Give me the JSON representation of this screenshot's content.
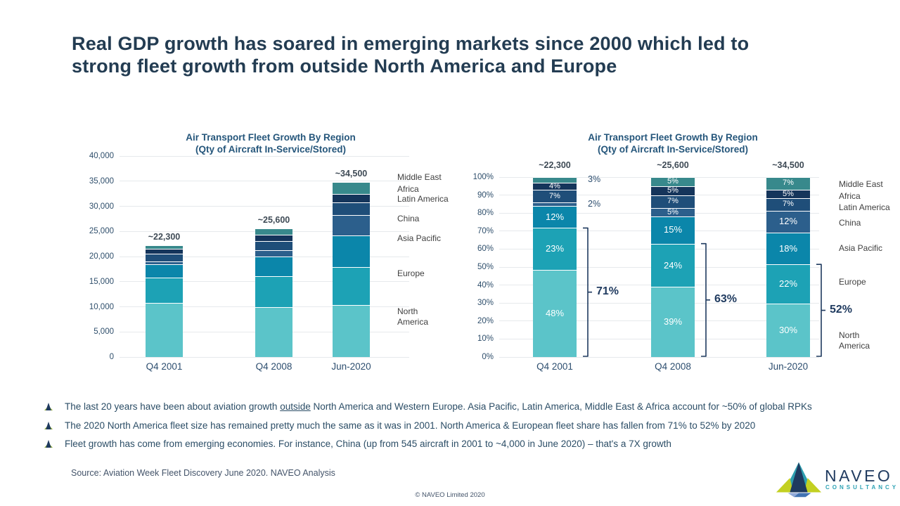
{
  "title_lines": [
    "Real GDP growth has soared in emerging markets since 2000 which led to",
    "strong fleet growth from outside North America and Europe"
  ],
  "colors": {
    "north_america": "#5BC4C9",
    "europe": "#1DA2B5",
    "asia_pacific": "#0B86AA",
    "china": "#2C5F8C",
    "latin_america": "#1F4E79",
    "africa": "#15355B",
    "middle_east": "#38898C",
    "brace": "#1F3A5F",
    "title_navy": "#233C52"
  },
  "chart_data": [
    {
      "type": "bar",
      "stacked": true,
      "title_lines": [
        "Air Transport Fleet Growth By Region",
        "(Qty of Aircraft In-Service/Stored)"
      ],
      "categories": [
        "Q4 2001",
        "Q4 2008",
        "Jun-2020"
      ],
      "totals_labels": [
        "~22,300",
        "~25,600",
        "~34,500"
      ],
      "totals": [
        22300,
        25600,
        34500
      ],
      "ylim": [
        0,
        40000
      ],
      "yticks": [
        "0",
        "5,000",
        "10,000",
        "15,000",
        "20,000",
        "25,000",
        "30,000",
        "35,000",
        "40,000"
      ],
      "grid": true,
      "legend_position": "right",
      "series": [
        {
          "name": "North America",
          "color": "#5BC4C9",
          "values": [
            10700,
            9980,
            10350
          ]
        },
        {
          "name": "Europe",
          "color": "#1DA2B5",
          "values": [
            5130,
            6140,
            7590
          ]
        },
        {
          "name": "Asia Pacific",
          "color": "#0B86AA",
          "values": [
            2680,
            3840,
            6210
          ]
        },
        {
          "name": "China",
          "color": "#2C5F8C",
          "values": [
            545,
            1280,
            4140
          ]
        },
        {
          "name": "Latin America",
          "color": "#1F4E79",
          "values": [
            1560,
            1790,
            2415
          ]
        },
        {
          "name": "Africa",
          "color": "#15355B",
          "values": [
            890,
            1280,
            1725
          ]
        },
        {
          "name": "Middle East",
          "color": "#38898C",
          "values": [
            670,
            1280,
            2415
          ]
        }
      ]
    },
    {
      "type": "bar",
      "stacked": true,
      "percent": true,
      "title_lines": [
        "Air Transport Fleet Growth By Region",
        "(Qty of Aircraft In-Service/Stored)"
      ],
      "categories": [
        "Q4 2001",
        "Q4 2008",
        "Jun-2020"
      ],
      "totals_labels": [
        "~22,300",
        "~25,600",
        "~34,500"
      ],
      "ylim": [
        0,
        100
      ],
      "yticks": [
        "0%",
        "10%",
        "20%",
        "30%",
        "40%",
        "50%",
        "60%",
        "70%",
        "80%",
        "90%",
        "100%"
      ],
      "grid": true,
      "legend_position": "right",
      "series": [
        {
          "name": "North America",
          "color": "#5BC4C9",
          "values": [
            48,
            39,
            30
          ]
        },
        {
          "name": "Europe",
          "color": "#1DA2B5",
          "values": [
            23,
            24,
            22
          ]
        },
        {
          "name": "Asia Pacific",
          "color": "#0B86AA",
          "values": [
            12,
            15,
            18
          ]
        },
        {
          "name": "China",
          "color": "#2C5F8C",
          "values": [
            2,
            5,
            12
          ]
        },
        {
          "name": "Latin America",
          "color": "#1F4E79",
          "values": [
            7,
            7,
            7
          ]
        },
        {
          "name": "Africa",
          "color": "#15355B",
          "values": [
            4,
            5,
            5
          ]
        },
        {
          "name": "Middle East",
          "color": "#38898C",
          "values": [
            3,
            5,
            7
          ]
        }
      ],
      "outside_labels": [
        {
          "category": "Q4 2001",
          "series": "Middle East",
          "label": "3%"
        },
        {
          "category": "Q4 2001",
          "series": "China",
          "label": "2%"
        }
      ],
      "braces": [
        {
          "category": "Q4 2001",
          "label": "71%",
          "span_pct": 71
        },
        {
          "category": "Q4 2008",
          "label": "63%",
          "span_pct": 63
        },
        {
          "category": "Jun-2020",
          "label": "52%",
          "span_pct": 52
        }
      ]
    }
  ],
  "bullets": [
    {
      "parts": [
        {
          "text": "The last 20 years have been about aviation growth "
        },
        {
          "text": "outside",
          "underline": true
        },
        {
          "text": " North America and Western Europe. Asia Pacific, Latin America, Middle East & Africa account for ~50% of global RPKs"
        }
      ]
    },
    {
      "parts": [
        {
          "text": "The 2020 North America fleet size has remained pretty much the same as it was in 2001. North America & European fleet share has fallen from 71% to 52% by 2020"
        }
      ]
    },
    {
      "parts": [
        {
          "text": "Fleet growth has come from emerging economies. For instance, China (up from 545 aircraft in 2001 to ~4,000 in June 2020) – that's a 7X growth"
        }
      ]
    }
  ],
  "source": "Source: Aviation Week Fleet Discovery June 2020. NAVEO Analysis",
  "footer": {
    "copyright": "© NAVEO Limited 2020"
  },
  "logo": {
    "name": "NAVEO",
    "tagline": "CONSULTANCY"
  }
}
